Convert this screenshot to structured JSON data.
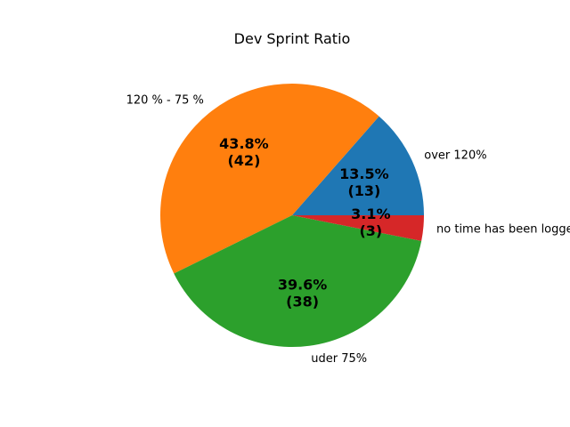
{
  "chart_data": {
    "type": "pie",
    "title": "Dev Sprint Ratio",
    "start_angle_deg": 0,
    "direction": "counterclockwise",
    "slices": [
      {
        "label": "over 120%",
        "value": 13,
        "percent_label": "13.5%",
        "count_label": "(13)",
        "color": "#1f77b4"
      },
      {
        "label": "120 % - 75 %",
        "value": 42,
        "percent_label": "43.8%",
        "count_label": "(42)",
        "color": "#ff7f0e"
      },
      {
        "label": "uder 75%",
        "value": 38,
        "percent_label": "39.6%",
        "count_label": "(38)",
        "color": "#2ca02c"
      },
      {
        "label": "no time has been logged",
        "value": 3,
        "percent_label": "3.1%",
        "count_label": "(3)",
        "color": "#d62728"
      }
    ]
  }
}
